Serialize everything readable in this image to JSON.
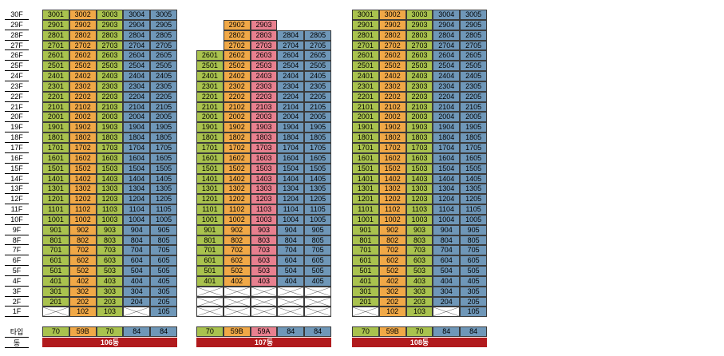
{
  "floors": [
    "30F",
    "29F",
    "28F",
    "27F",
    "26F",
    "25F",
    "24F",
    "23F",
    "22F",
    "21F",
    "20F",
    "19F",
    "18F",
    "17F",
    "16F",
    "15F",
    "14F",
    "13F",
    "12F",
    "11F",
    "10F",
    "9F",
    "8F",
    "7F",
    "6F",
    "5F",
    "4F",
    "3F",
    "2F",
    "1F"
  ],
  "legend": {
    "type_label": "타입",
    "dong_label": "동"
  },
  "colors": {
    "green": "#a9c24e",
    "orange": "#f0a847",
    "pink": "#e8808f",
    "blue": "#6f97b8",
    "dong_bar": "#b11a1d"
  },
  "buildings": [
    {
      "name": "106동",
      "unit_colors": [
        "green",
        "orange",
        "green",
        "blue",
        "blue"
      ],
      "types": [
        "70",
        "59B",
        "70",
        "84",
        "84"
      ],
      "floors": [
        [
          "3001",
          "3002",
          "3003",
          "3004",
          "3005"
        ],
        [
          "2901",
          "2902",
          "2903",
          "2904",
          "2905"
        ],
        [
          "2801",
          "2802",
          "2803",
          "2804",
          "2805"
        ],
        [
          "2701",
          "2702",
          "2703",
          "2704",
          "2705"
        ],
        [
          "2601",
          "2602",
          "2603",
          "2604",
          "2605"
        ],
        [
          "2501",
          "2502",
          "2503",
          "2504",
          "2505"
        ],
        [
          "2401",
          "2402",
          "2403",
          "2404",
          "2405"
        ],
        [
          "2301",
          "2302",
          "2303",
          "2304",
          "2305"
        ],
        [
          "2201",
          "2202",
          "2203",
          "2204",
          "2205"
        ],
        [
          "2101",
          "2102",
          "2103",
          "2104",
          "2105"
        ],
        [
          "2001",
          "2002",
          "2003",
          "2004",
          "2005"
        ],
        [
          "1901",
          "1902",
          "1903",
          "1904",
          "1905"
        ],
        [
          "1801",
          "1802",
          "1803",
          "1804",
          "1805"
        ],
        [
          "1701",
          "1702",
          "1703",
          "1704",
          "1705"
        ],
        [
          "1601",
          "1602",
          "1603",
          "1604",
          "1605"
        ],
        [
          "1501",
          "1502",
          "1503",
          "1504",
          "1505"
        ],
        [
          "1401",
          "1402",
          "1403",
          "1404",
          "1405"
        ],
        [
          "1301",
          "1302",
          "1303",
          "1304",
          "1305"
        ],
        [
          "1201",
          "1202",
          "1203",
          "1204",
          "1205"
        ],
        [
          "1101",
          "1102",
          "1103",
          "1104",
          "1105"
        ],
        [
          "1001",
          "1002",
          "1003",
          "1004",
          "1005"
        ],
        [
          "901",
          "902",
          "903",
          "904",
          "905"
        ],
        [
          "801",
          "802",
          "803",
          "804",
          "805"
        ],
        [
          "701",
          "702",
          "703",
          "704",
          "705"
        ],
        [
          "601",
          "602",
          "603",
          "604",
          "605"
        ],
        [
          "501",
          "502",
          "503",
          "504",
          "505"
        ],
        [
          "401",
          "402",
          "403",
          "404",
          "405"
        ],
        [
          "301",
          "302",
          "303",
          "304",
          "305"
        ],
        [
          "201",
          "202",
          "203",
          "204",
          "205"
        ],
        [
          "X",
          "102",
          "103",
          "X",
          "105"
        ]
      ]
    },
    {
      "name": "107동",
      "unit_colors": [
        "green",
        "orange",
        "pink",
        "blue",
        "blue"
      ],
      "types": [
        "70",
        "59B",
        "59A",
        "84",
        "84"
      ],
      "floors": [
        [
          "",
          "",
          "",
          "",
          ""
        ],
        [
          "",
          "2902",
          "2903",
          "",
          ""
        ],
        [
          "",
          "2802",
          "2803",
          "2804",
          "2805"
        ],
        [
          "",
          "2702",
          "2703",
          "2704",
          "2705"
        ],
        [
          "2601",
          "2602",
          "2603",
          "2604",
          "2605"
        ],
        [
          "2501",
          "2502",
          "2503",
          "2504",
          "2505"
        ],
        [
          "2401",
          "2402",
          "2403",
          "2404",
          "2405"
        ],
        [
          "2301",
          "2302",
          "2303",
          "2304",
          "2305"
        ],
        [
          "2201",
          "2202",
          "2203",
          "2204",
          "2205"
        ],
        [
          "2101",
          "2102",
          "2103",
          "2104",
          "2105"
        ],
        [
          "2001",
          "2002",
          "2003",
          "2004",
          "2005"
        ],
        [
          "1901",
          "1902",
          "1903",
          "1904",
          "1905"
        ],
        [
          "1801",
          "1802",
          "1803",
          "1804",
          "1805"
        ],
        [
          "1701",
          "1702",
          "1703",
          "1704",
          "1705"
        ],
        [
          "1601",
          "1602",
          "1603",
          "1604",
          "1605"
        ],
        [
          "1501",
          "1502",
          "1503",
          "1504",
          "1505"
        ],
        [
          "1401",
          "1402",
          "1403",
          "1404",
          "1405"
        ],
        [
          "1301",
          "1302",
          "1303",
          "1304",
          "1305"
        ],
        [
          "1201",
          "1202",
          "1203",
          "1204",
          "1205"
        ],
        [
          "1101",
          "1102",
          "1103",
          "1104",
          "1105"
        ],
        [
          "1001",
          "1002",
          "1003",
          "1004",
          "1005"
        ],
        [
          "901",
          "902",
          "903",
          "904",
          "905"
        ],
        [
          "801",
          "802",
          "803",
          "804",
          "805"
        ],
        [
          "701",
          "702",
          "703",
          "704",
          "705"
        ],
        [
          "601",
          "602",
          "603",
          "604",
          "605"
        ],
        [
          "501",
          "502",
          "503",
          "504",
          "505"
        ],
        [
          "401",
          "402",
          "403",
          "404",
          "405"
        ],
        [
          "X",
          "X",
          "X",
          "X",
          "X"
        ],
        [
          "X",
          "X",
          "X",
          "X",
          "X"
        ],
        [
          "X",
          "X",
          "X",
          "X",
          "X"
        ]
      ]
    },
    {
      "name": "108동",
      "unit_colors": [
        "green",
        "orange",
        "green",
        "blue",
        "blue"
      ],
      "types": [
        "70",
        "59B",
        "70",
        "84",
        "84"
      ],
      "floors": [
        [
          "3001",
          "3002",
          "3003",
          "3004",
          "3005"
        ],
        [
          "2901",
          "2902",
          "2903",
          "2904",
          "2905"
        ],
        [
          "2801",
          "2802",
          "2803",
          "2804",
          "2805"
        ],
        [
          "2701",
          "2702",
          "2703",
          "2704",
          "2705"
        ],
        [
          "2601",
          "2602",
          "2603",
          "2604",
          "2605"
        ],
        [
          "2501",
          "2502",
          "2503",
          "2504",
          "2505"
        ],
        [
          "2401",
          "2402",
          "2403",
          "2404",
          "2405"
        ],
        [
          "2301",
          "2302",
          "2303",
          "2304",
          "2305"
        ],
        [
          "2201",
          "2202",
          "2203",
          "2204",
          "2205"
        ],
        [
          "2101",
          "2102",
          "2103",
          "2104",
          "2105"
        ],
        [
          "2001",
          "2002",
          "2003",
          "2004",
          "2005"
        ],
        [
          "1901",
          "1902",
          "1903",
          "1904",
          "1905"
        ],
        [
          "1801",
          "1802",
          "1803",
          "1804",
          "1805"
        ],
        [
          "1701",
          "1702",
          "1703",
          "1704",
          "1705"
        ],
        [
          "1601",
          "1602",
          "1603",
          "1604",
          "1605"
        ],
        [
          "1501",
          "1502",
          "1503",
          "1504",
          "1505"
        ],
        [
          "1401",
          "1402",
          "1403",
          "1404",
          "1405"
        ],
        [
          "1301",
          "1302",
          "1303",
          "1304",
          "1305"
        ],
        [
          "1201",
          "1202",
          "1203",
          "1204",
          "1205"
        ],
        [
          "1101",
          "1102",
          "1103",
          "1104",
          "1105"
        ],
        [
          "1001",
          "1002",
          "1003",
          "1004",
          "1005"
        ],
        [
          "901",
          "902",
          "903",
          "904",
          "905"
        ],
        [
          "801",
          "802",
          "803",
          "804",
          "805"
        ],
        [
          "701",
          "702",
          "703",
          "704",
          "705"
        ],
        [
          "601",
          "602",
          "603",
          "604",
          "605"
        ],
        [
          "501",
          "502",
          "503",
          "504",
          "505"
        ],
        [
          "401",
          "402",
          "403",
          "404",
          "405"
        ],
        [
          "301",
          "302",
          "303",
          "304",
          "305"
        ],
        [
          "201",
          "202",
          "203",
          "204",
          "205"
        ],
        [
          "X",
          "102",
          "103",
          "X",
          "105"
        ]
      ]
    }
  ]
}
